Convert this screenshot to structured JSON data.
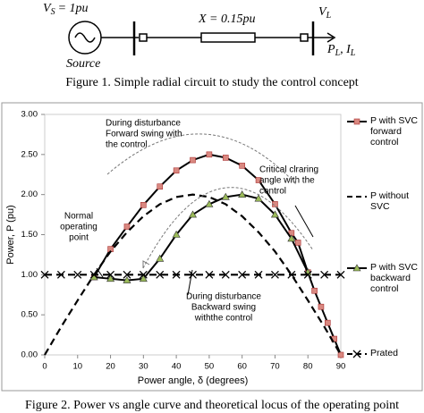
{
  "figure1": {
    "vs_symbol": "V",
    "vs_sub": "S",
    "vs_value": "= 1pu",
    "x_label": "X = 0.15pu",
    "vl_symbol": "V",
    "vl_sub": "L",
    "pl_symbol": "P",
    "pl_sub": "L",
    "il_symbol": ", I",
    "il_sub": "L",
    "source_label": "Source",
    "caption": "Figure 1. Simple radial circuit to study the control concept"
  },
  "chart_data": {
    "type": "line",
    "x_label": "Power angle, δ (degrees)",
    "y_label": "Power, P (pu)",
    "xlim": [
      0,
      90
    ],
    "xticks": [
      0,
      10,
      20,
      30,
      40,
      50,
      60,
      70,
      80,
      90
    ],
    "ylim": [
      0,
      3
    ],
    "yticks": [
      {
        "value": 0,
        "label": "0.00"
      },
      {
        "value": 0.5,
        "label": "0.50"
      },
      {
        "value": 1,
        "label": "1.00"
      },
      {
        "value": 1.5,
        "label": "1.50"
      },
      {
        "value": 2,
        "label": "2.00"
      },
      {
        "value": 2.5,
        "label": "2.50"
      },
      {
        "value": 3,
        "label": "3.00"
      }
    ],
    "series": [
      {
        "name": "P with SVC forward control",
        "color": "#000000",
        "marker": "square",
        "marker_color": "#d98880",
        "linestyle": "solid",
        "x": [
          15,
          20,
          25,
          30,
          35,
          40,
          45,
          50,
          55,
          60,
          65,
          70,
          75,
          77,
          80,
          82,
          84,
          86,
          88,
          90
        ],
        "values": [
          0.97,
          1.32,
          1.6,
          1.87,
          2.1,
          2.3,
          2.43,
          2.5,
          2.46,
          2.36,
          2.18,
          1.88,
          1.52,
          1.4,
          1.03,
          0.8,
          0.6,
          0.4,
          0.2,
          0
        ]
      },
      {
        "name": "P without SVC",
        "color": "#000000",
        "marker": "none",
        "linestyle": "dashed",
        "x": [
          0,
          5,
          10,
          15,
          20,
          25,
          30,
          35,
          40,
          45,
          50,
          55,
          60,
          65,
          70,
          75,
          80,
          85,
          90
        ],
        "values": [
          0,
          0.35,
          0.68,
          1.0,
          1.29,
          1.53,
          1.73,
          1.88,
          1.97,
          2.0,
          1.97,
          1.88,
          1.73,
          1.53,
          1.29,
          1.0,
          0.68,
          0.35,
          0
        ]
      },
      {
        "name": "P with SVC backward control",
        "color": "#000000",
        "marker": "triangle",
        "marker_color": "#9bbb59",
        "linestyle": "solid",
        "x": [
          15,
          20,
          25,
          30,
          35,
          40,
          45,
          50,
          55,
          60,
          65,
          70,
          75,
          80
        ],
        "values": [
          0.97,
          0.95,
          0.93,
          0.95,
          1.2,
          1.5,
          1.75,
          1.88,
          1.97,
          2.0,
          1.95,
          1.75,
          1.45,
          1.03
        ]
      },
      {
        "name": "Prated",
        "color": "#000000",
        "marker": "x",
        "marker_color": "#000000",
        "linestyle": "dashed",
        "x": [
          0,
          5,
          10,
          15,
          20,
          25,
          30,
          35,
          40,
          45,
          50,
          55,
          60,
          65,
          70,
          75,
          80,
          85,
          90
        ],
        "values": [
          1,
          1,
          1,
          1,
          1,
          1,
          1,
          1,
          1,
          1,
          1,
          1,
          1,
          1,
          1,
          1,
          1,
          1,
          1
        ]
      }
    ],
    "annotations": [
      [
        "During disturbance",
        "Forward swing with",
        "the control"
      ],
      [
        "Critical clraring",
        "angle with the",
        "control"
      ],
      [
        "Normal",
        "operating",
        "point"
      ],
      [
        "During disturbance",
        "Backward swing",
        "withthe control"
      ]
    ]
  },
  "figure2": {
    "caption": "Figure 2. Power vs angle curve and theoretical locus of the operating point"
  }
}
